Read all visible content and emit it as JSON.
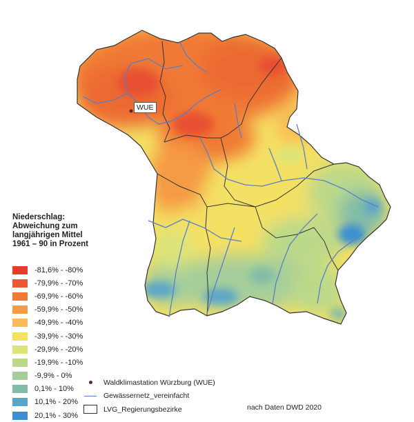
{
  "legend": {
    "title_lines": [
      "Niederschlag:",
      "Abweichung zum",
      "langjährigen Mittel",
      "1961 – 90 in Prozent"
    ],
    "classes": [
      {
        "label": "-81,6% - -80%",
        "color": "#e53d2a"
      },
      {
        "label": "-79,9% - -70%",
        "color": "#ec5a2f"
      },
      {
        "label": "-69,9% - -60%",
        "color": "#f07a35"
      },
      {
        "label": "-59,9% - -50%",
        "color": "#f59a45"
      },
      {
        "label": "-49,9% - -40%",
        "color": "#f9bc55"
      },
      {
        "label": "-39,9% - -30%",
        "color": "#f4e063"
      },
      {
        "label": "-29,9% - -20%",
        "color": "#dde47a"
      },
      {
        "label": "-19,9% - -10%",
        "color": "#bcd98a"
      },
      {
        "label": "-9,9% - 0%",
        "color": "#a6ce9a"
      },
      {
        "label": "0,1% - 10%",
        "color": "#82bca8"
      },
      {
        "label": "10,1% - 20%",
        "color": "#5ba6c7"
      },
      {
        "label": "20,1% - 30%",
        "color": "#3b8fd2"
      }
    ]
  },
  "aux_legend": {
    "station": "Waldklimastation Würzburg (WUE)",
    "rivers": "Gewässernetz_vereinfacht",
    "districts": "LVG_Regierungsbezirke"
  },
  "station_label": "WUE",
  "source": "nach Daten DWD 2020",
  "colors": {
    "river": "#5a7fc6",
    "border": "#333333",
    "station": "#5a2b2b"
  }
}
